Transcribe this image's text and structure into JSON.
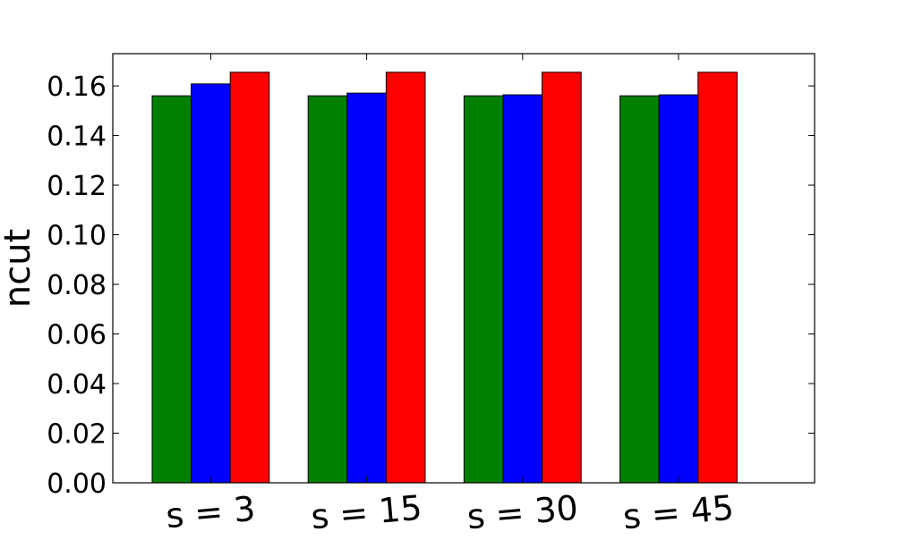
{
  "chart_data": {
    "type": "bar",
    "categories": [
      "s = 3",
      "s = 15",
      "s = 30",
      "s = 45"
    ],
    "series": [
      {
        "color": "#007f00",
        "values": [
          0.156,
          0.156,
          0.156,
          0.156
        ]
      },
      {
        "color": "#0000ff",
        "values": [
          0.1608,
          0.1571,
          0.1564,
          0.1564
        ]
      },
      {
        "color": "#ff0000",
        "values": [
          0.1655,
          0.1655,
          0.1655,
          0.1655
        ]
      }
    ],
    "title": "",
    "xlabel": "",
    "ylabel": "ncut",
    "ylim": [
      0,
      0.173
    ],
    "yticks": [
      "0.00",
      "0.02",
      "0.04",
      "0.06",
      "0.08",
      "0.10",
      "0.12",
      "0.14",
      "0.16"
    ],
    "grid": false,
    "legend": "none",
    "x_tick_label_rotation_deg": -5
  }
}
